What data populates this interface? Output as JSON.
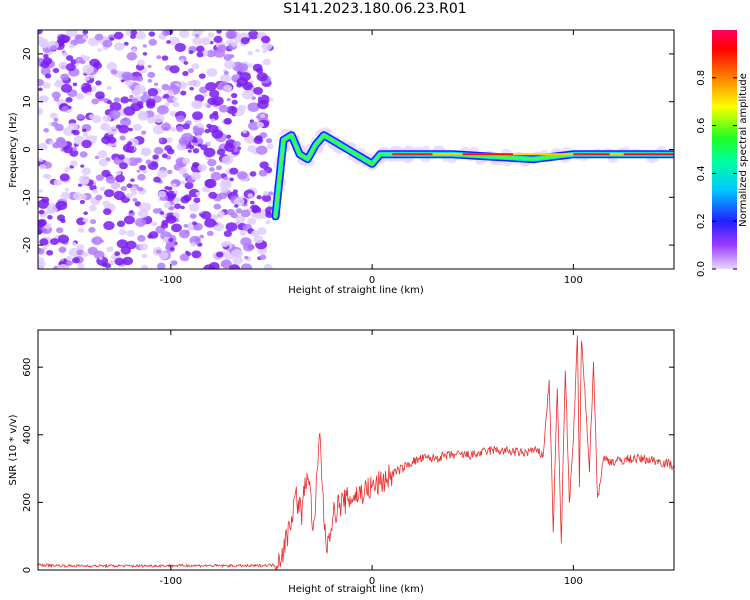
{
  "title": "S141.2023.180.06.23.R01",
  "colors": {
    "line": "#e83030",
    "axis": "#000000",
    "background": "#ffffff"
  },
  "chart_data": [
    {
      "type": "heatmap",
      "xlabel": "Height of straight line (km)",
      "ylabel": "Frequency (Hz)",
      "xlim": [
        -166,
        150
      ],
      "ylim": [
        -25,
        25
      ],
      "x_ticks": [
        {
          "v": -100,
          "label": "-100"
        },
        {
          "v": 0,
          "label": "0"
        },
        {
          "v": 100,
          "label": "100"
        }
      ],
      "y_ticks": [
        {
          "v": -20,
          "label": "-20"
        },
        {
          "v": -10,
          "label": "-10"
        },
        {
          "v": 0,
          "label": "0"
        },
        {
          "v": 10,
          "label": "10"
        },
        {
          "v": 20,
          "label": "20"
        }
      ],
      "colorbar": {
        "label": "Normalized spectral amplitude",
        "range": [
          0,
          1
        ],
        "colormap": "gist_rainbow",
        "ticks": [
          {
            "v": 0.0,
            "label": "0.0"
          },
          {
            "v": 0.2,
            "label": "0.2"
          },
          {
            "v": 0.4,
            "label": "0.4"
          },
          {
            "v": 0.6,
            "label": "0.6"
          },
          {
            "v": 0.8,
            "label": "0.8"
          }
        ]
      },
      "ridge": {
        "description_free": true,
        "x": [
          -48,
          -44,
          -40,
          -36,
          -32,
          -28,
          -24,
          -20,
          -16,
          -12,
          -8,
          -4,
          0,
          4,
          8,
          12,
          20,
          40,
          60,
          80,
          100,
          120,
          150
        ],
        "freq": [
          -14,
          2,
          3,
          -1,
          -2,
          1,
          3,
          2,
          1,
          0,
          -1,
          -2,
          -3,
          -1,
          -1,
          -1,
          -1,
          -1,
          -1.5,
          -2,
          -1,
          -1,
          -1
        ]
      }
    },
    {
      "type": "line",
      "xlabel": "Height of straight line (km)",
      "ylabel": "SNR (10 * v/v)",
      "xlim": [
        -166,
        150
      ],
      "ylim": [
        0,
        710
      ],
      "x_ticks": [
        {
          "v": -100,
          "label": "-100"
        },
        {
          "v": 0,
          "label": "0"
        },
        {
          "v": 100,
          "label": "100"
        }
      ],
      "y_ticks": [
        {
          "v": 0,
          "label": "0"
        },
        {
          "v": 200,
          "label": "200"
        },
        {
          "v": 400,
          "label": "400"
        },
        {
          "v": 600,
          "label": "600"
        }
      ],
      "series": [
        {
          "x": [
            -166,
            -150,
            -120,
            -90,
            -60,
            -48,
            -44,
            -41,
            -38,
            -35,
            -32,
            -29,
            -26,
            -23,
            -20,
            -17,
            -14,
            -10,
            -5,
            0,
            5,
            10,
            15,
            20,
            25,
            30,
            40,
            50,
            60,
            70,
            75,
            80,
            85,
            88,
            90,
            92,
            94,
            96,
            98,
            100,
            102,
            103,
            104,
            106,
            108,
            110,
            112,
            115,
            120,
            130,
            140,
            150
          ],
          "values": [
            15,
            12,
            12,
            13,
            12,
            15,
            60,
            130,
            220,
            170,
            300,
            110,
            400,
            60,
            150,
            190,
            200,
            215,
            230,
            245,
            260,
            285,
            300,
            320,
            330,
            330,
            340,
            340,
            355,
            350,
            345,
            355,
            340,
            560,
            120,
            540,
            80,
            600,
            200,
            380,
            700,
            250,
            680,
            500,
            300,
            620,
            210,
            330,
            320,
            330,
            325,
            310
          ]
        }
      ]
    }
  ]
}
